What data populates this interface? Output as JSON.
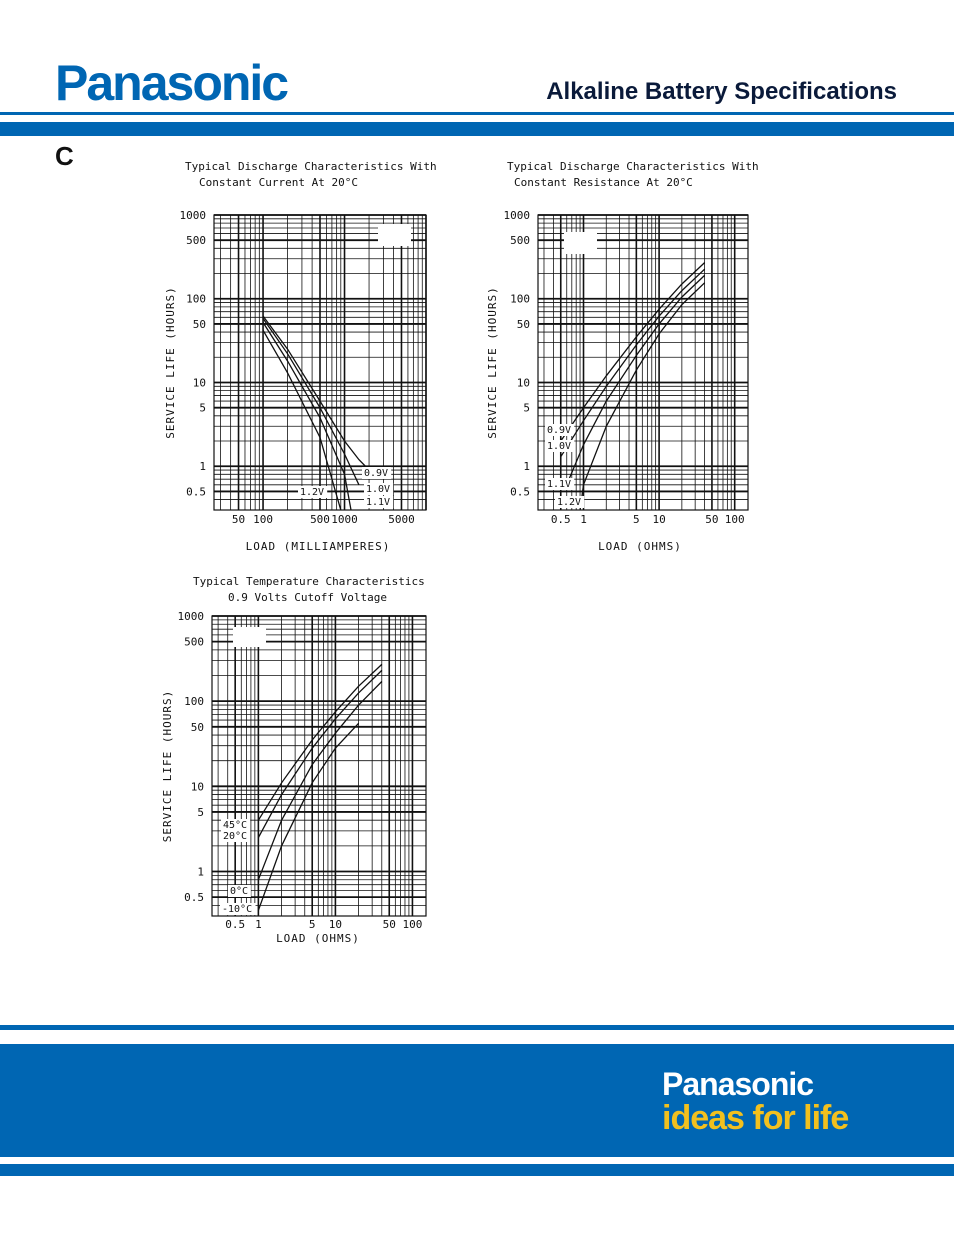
{
  "header": {
    "brand": "Panasonic",
    "title": "Alkaline Battery Specifications",
    "size_letter": "C"
  },
  "footer": {
    "brand": "Panasonic",
    "tagline": "ideas for life"
  },
  "colors": {
    "brand_blue": "#0066b3",
    "tagline_yellow": "#f2c01e"
  },
  "chart_data": [
    {
      "type": "line",
      "title": "Typical Discharge Characteristics With",
      "subtitle": "Constant Current At 20°C",
      "xlabel": "LOAD (MILLIAMPERES)",
      "ylabel": "SERVICE LIFE (HOURS)",
      "xscale": "log",
      "yscale": "log",
      "xlim": [
        25,
        10000
      ],
      "ylim": [
        0.3,
        1000
      ],
      "x_ticks": [
        50,
        100,
        500,
        1000,
        5000
      ],
      "x_tick_labels": [
        "50",
        "100",
        "500",
        "1000",
        "5000"
      ],
      "y_ticks": [
        1000,
        500,
        100,
        50,
        10,
        5,
        1,
        0.5
      ],
      "y_tick_labels": [
        "1000",
        "500",
        "100",
        "50",
        "10",
        "5",
        "1",
        "0.5"
      ],
      "grid": true,
      "series": [
        {
          "name": "0.9V",
          "x": [
            100,
            200,
            500,
            1000,
            1500,
            2000
          ],
          "y": [
            62,
            25,
            6,
            2,
            1.2,
            0.9
          ]
        },
        {
          "name": "1.0V",
          "x": [
            100,
            200,
            500,
            1000,
            1500
          ],
          "y": [
            58,
            22,
            5,
            1.4,
            0.6
          ]
        },
        {
          "name": "1.1V",
          "x": [
            100,
            200,
            500,
            1000,
            1200
          ],
          "y": [
            52,
            18,
            3.8,
            0.8,
            0.3
          ]
        },
        {
          "name": "1.2V",
          "x": [
            100,
            200,
            500,
            900
          ],
          "y": [
            42,
            13,
            2.2,
            0.3
          ]
        }
      ]
    },
    {
      "type": "line",
      "title": "Typical Discharge Characteristics With",
      "subtitle": "Constant Resistance At 20°C",
      "xlabel": "LOAD (OHMS)",
      "ylabel": "SERVICE LIFE (HOURS)",
      "xscale": "log",
      "yscale": "log",
      "xlim": [
        0.25,
        150
      ],
      "ylim": [
        0.3,
        1000
      ],
      "x_ticks": [
        0.5,
        1,
        5,
        10,
        50,
        100
      ],
      "x_tick_labels": [
        "0.5",
        "1",
        "5",
        "10",
        "50",
        "100"
      ],
      "y_ticks": [
        1000,
        500,
        100,
        50,
        10,
        5,
        1,
        0.5
      ],
      "y_tick_labels": [
        "1000",
        "500",
        "100",
        "50",
        "10",
        "5",
        "1",
        "0.5"
      ],
      "grid": true,
      "series": [
        {
          "name": "0.9V",
          "x": [
            0.5,
            1,
            2,
            5,
            10,
            20,
            40
          ],
          "y": [
            2,
            5,
            12,
            35,
            75,
            150,
            270
          ]
        },
        {
          "name": "1.0V",
          "x": [
            0.5,
            1,
            2,
            5,
            10,
            20,
            40
          ],
          "y": [
            1.3,
            3.5,
            9,
            28,
            62,
            125,
            225
          ]
        },
        {
          "name": "1.1V",
          "x": [
            0.6,
            1,
            2,
            5,
            10,
            20,
            40
          ],
          "y": [
            0.6,
            1.8,
            6,
            21,
            50,
            105,
            190
          ]
        },
        {
          "name": "1.2V",
          "x": [
            0.9,
            1,
            2,
            5,
            10,
            20,
            40
          ],
          "y": [
            0.3,
            0.6,
            3,
            14,
            38,
            85,
            155
          ]
        }
      ]
    },
    {
      "type": "line",
      "title": "Typical Temperature Characteristics",
      "subtitle": "0.9 Volts Cutoff Voltage",
      "xlabel": "LOAD (OHMS)",
      "ylabel": "SERVICE LIFE (HOURS)",
      "xscale": "log",
      "yscale": "log",
      "xlim": [
        0.25,
        150
      ],
      "ylim": [
        0.3,
        1000
      ],
      "x_ticks": [
        0.5,
        1,
        5,
        10,
        50,
        100
      ],
      "x_tick_labels": [
        "0.5",
        "1",
        "5",
        "10",
        "50",
        "100"
      ],
      "y_ticks": [
        1000,
        500,
        100,
        50,
        10,
        5,
        1,
        0.5
      ],
      "y_tick_labels": [
        "1000",
        "500",
        "100",
        "50",
        "10",
        "5",
        "1",
        "0.5"
      ],
      "grid": true,
      "series": [
        {
          "name": "45°C",
          "x": [
            1,
            2,
            5,
            10,
            20,
            40
          ],
          "y": [
            4,
            11,
            35,
            75,
            150,
            270
          ]
        },
        {
          "name": "20°C",
          "x": [
            1,
            2,
            5,
            10,
            20,
            40
          ],
          "y": [
            2.5,
            8,
            28,
            62,
            125,
            230
          ]
        },
        {
          "name": "0°C",
          "x": [
            1,
            2,
            5,
            10,
            20,
            40
          ],
          "y": [
            0.8,
            4,
            18,
            42,
            90,
            170
          ]
        },
        {
          "name": "-10°C",
          "x": [
            1,
            2,
            5,
            10,
            20
          ],
          "y": [
            0.35,
            2,
            11,
            28,
            55
          ]
        }
      ]
    }
  ]
}
